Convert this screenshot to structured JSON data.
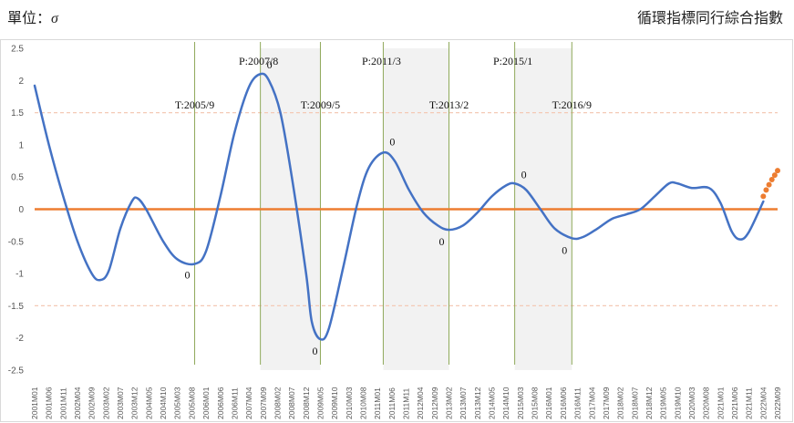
{
  "header": {
    "unit_label": "單位：",
    "unit_symbol": "σ",
    "title": "循環指標同行綜合指數"
  },
  "chart_data": {
    "type": "line",
    "ylim": [
      -2.5,
      2.5
    ],
    "yticks": [
      2.5,
      2,
      1.5,
      1,
      0.5,
      0,
      -0.5,
      -1,
      -1.5,
      -2,
      -2.5
    ],
    "ytick_labels": [
      "2.5",
      "2",
      "1.5",
      "1",
      "0.5",
      "0",
      "-0.5",
      "-1",
      "-1.5",
      "-2",
      "-2.5"
    ],
    "x_start": "2001M01",
    "x_end": "2022M09",
    "xticks": [
      "2001M01",
      "2001M06",
      "2001M11",
      "2002M04",
      "2002M09",
      "2003M02",
      "2003M07",
      "2003M12",
      "2004M05",
      "2004M10",
      "2005M03",
      "2005M08",
      "2006M01",
      "2006M06",
      "2006M11",
      "2007M04",
      "2007M09",
      "2008M02",
      "2008M07",
      "2008M12",
      "2009M05",
      "2009M10",
      "2010M03",
      "2010M08",
      "2011M01",
      "2011M06",
      "2011M11",
      "2012M04",
      "2012M09",
      "2013M02",
      "2013M07",
      "2013M12",
      "2014M05",
      "2014M10",
      "2015M03",
      "2015M08",
      "2016M01",
      "2016M06",
      "2016M11",
      "2017M04",
      "2017M09",
      "2018M02",
      "2018M07",
      "2018M12",
      "2019M05",
      "2019M10",
      "2020M03",
      "2020M08",
      "2021M01",
      "2021M06",
      "2021M11",
      "2022M04",
      "2022M09"
    ],
    "grid": false,
    "reference_lines": [
      1.5,
      -1.5
    ],
    "zero_line_color": "#ED7D31",
    "series_color": "#4472C4",
    "forecast_color": "#ED7D31",
    "recession_shading": [
      {
        "from": "2007M08",
        "to": "2009M05"
      },
      {
        "from": "2011M03",
        "to": "2013M02"
      },
      {
        "from": "2015M01",
        "to": "2016M09"
      }
    ],
    "turning_lines": [
      {
        "at": "2005M09",
        "label": "T:2005/9"
      },
      {
        "at": "2007M08",
        "label": "P:2007/8"
      },
      {
        "at": "2009M05",
        "label": "T:2009/5"
      },
      {
        "at": "2011M03",
        "label": "P:2011/3"
      },
      {
        "at": "2013M02",
        "label": "T:2013/2"
      },
      {
        "at": "2015M01",
        "label": "P:2015/1"
      },
      {
        "at": "2016M09",
        "label": "T:2016/9"
      }
    ],
    "zero_labels": [
      {
        "at": "2005M09",
        "y": -0.85,
        "text": "0"
      },
      {
        "at": "2007M08",
        "y": 2.1,
        "text": "0"
      },
      {
        "at": "2009M05",
        "y": -2.02,
        "text": "0"
      },
      {
        "at": "2011M03",
        "y": 0.88,
        "text": "0"
      },
      {
        "at": "2013M02",
        "y": -0.32,
        "text": "0"
      },
      {
        "at": "2015M01",
        "y": 0.4,
        "text": "0"
      },
      {
        "at": "2016M09",
        "y": -0.45,
        "text": "0"
      }
    ],
    "series": [
      {
        "points": [
          [
            "2001M01",
            1.92
          ],
          [
            "2001M06",
            1.0
          ],
          [
            "2001M11",
            0.2
          ],
          [
            "2002M04",
            -0.5
          ],
          [
            "2002M09",
            -1.0
          ],
          [
            "2002M12",
            -1.1
          ],
          [
            "2003M03",
            -0.95
          ],
          [
            "2003M07",
            -0.3
          ],
          [
            "2003M11",
            0.12
          ],
          [
            "2004M01",
            0.17
          ],
          [
            "2004M04",
            0.0
          ],
          [
            "2004M10",
            -0.5
          ],
          [
            "2005M03",
            -0.78
          ],
          [
            "2005M09",
            -0.85
          ],
          [
            "2006M01",
            -0.65
          ],
          [
            "2006M06",
            0.2
          ],
          [
            "2006M11",
            1.2
          ],
          [
            "2007M04",
            1.9
          ],
          [
            "2007M08",
            2.1
          ],
          [
            "2007M11",
            2.0
          ],
          [
            "2008M03",
            1.5
          ],
          [
            "2008M07",
            0.5
          ],
          [
            "2008M12",
            -1.0
          ],
          [
            "2009M02",
            -1.75
          ],
          [
            "2009M05",
            -2.02
          ],
          [
            "2009M08",
            -1.85
          ],
          [
            "2010M01",
            -0.9
          ],
          [
            "2010M06",
            0.1
          ],
          [
            "2010M10",
            0.65
          ],
          [
            "2011M03",
            0.88
          ],
          [
            "2011M07",
            0.75
          ],
          [
            "2011M12",
            0.3
          ],
          [
            "2012M05",
            -0.05
          ],
          [
            "2012M10",
            -0.25
          ],
          [
            "2013M02",
            -0.32
          ],
          [
            "2013M07",
            -0.25
          ],
          [
            "2013M12",
            -0.05
          ],
          [
            "2014M05",
            0.2
          ],
          [
            "2014M10",
            0.37
          ],
          [
            "2015M01",
            0.4
          ],
          [
            "2015M05",
            0.3
          ],
          [
            "2015M10",
            0.0
          ],
          [
            "2016M03",
            -0.3
          ],
          [
            "2016M09",
            -0.45
          ],
          [
            "2017M01",
            -0.43
          ],
          [
            "2017M06",
            -0.3
          ],
          [
            "2017M11",
            -0.15
          ],
          [
            "2018M04",
            -0.08
          ],
          [
            "2018M09",
            0.0
          ],
          [
            "2019M02",
            0.2
          ],
          [
            "2019M07",
            0.4
          ],
          [
            "2019M10",
            0.4
          ],
          [
            "2020M03",
            0.33
          ],
          [
            "2020M09",
            0.33
          ],
          [
            "2021M01",
            0.1
          ],
          [
            "2021M05",
            -0.35
          ],
          [
            "2021M08",
            -0.47
          ],
          [
            "2021M11",
            -0.35
          ],
          [
            "2022M04",
            0.12
          ]
        ]
      },
      {
        "style": "dotted",
        "points": [
          [
            "2022M04",
            0.2
          ],
          [
            "2022M05",
            0.3
          ],
          [
            "2022M06",
            0.38
          ],
          [
            "2022M07",
            0.46
          ],
          [
            "2022M08",
            0.53
          ],
          [
            "2022M09",
            0.6
          ]
        ]
      }
    ]
  }
}
